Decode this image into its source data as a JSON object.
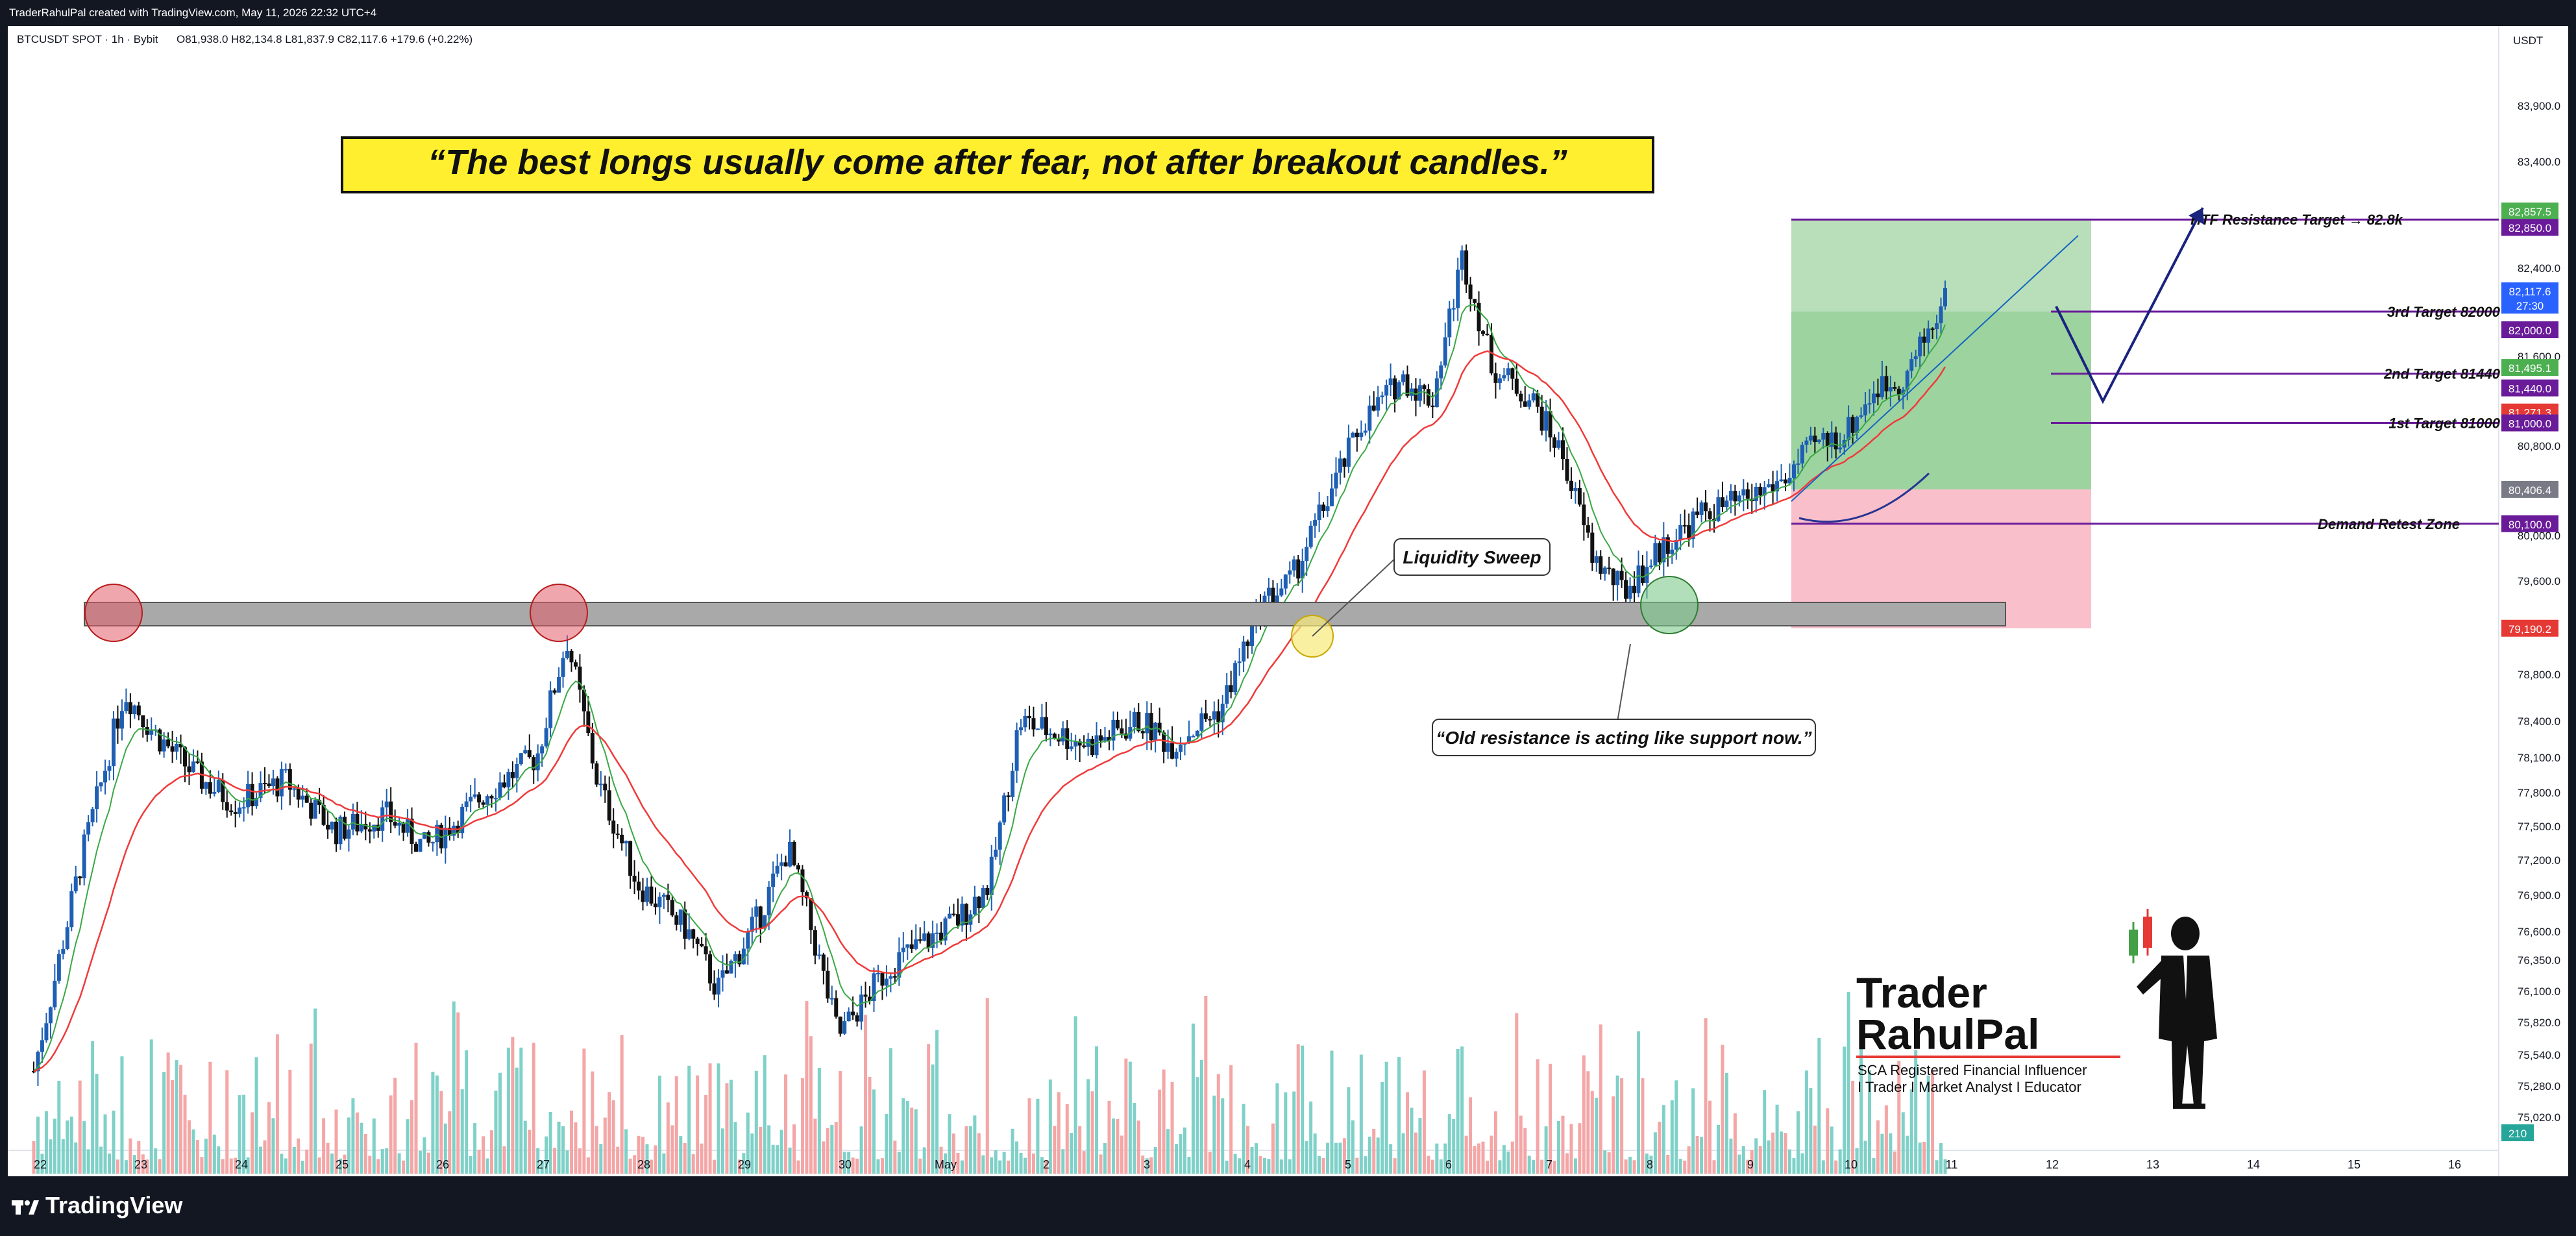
{
  "header": {
    "credit": "TraderRahulPal created with TradingView.com, May 11, 2026 22:32 UTC+4"
  },
  "symbol_line": {
    "symbol": "BTCUSDT SPOT · 1h · Bybit",
    "ohlc": "O81,938.0  H82,134.8  L81,837.9  C82,117.6  +179.6 (+0.22%)"
  },
  "quote": "“The best longs usually come after fear, not after breakout candles.”",
  "annotations": {
    "liquidity_sweep": "Liquidity Sweep",
    "old_resistance": "“Old resistance is acting like support now.”",
    "htf_target": "HTF Resistance Target → 82.8k",
    "target3": "3rd Target 82000",
    "target2": "2nd Target 81440",
    "target1": "1st Target 81000",
    "demand_zone": "Demand Retest Zone"
  },
  "price_badges": {
    "p82857": "82,857.5",
    "p82850": "82,850.0",
    "p82117": "82,117.6",
    "countdown": "27:30",
    "p82000": "82,000.0",
    "p81495": "81,495.1",
    "p81440": "81,440.0",
    "p81271": "81,271.3",
    "p81000": "81,000.0",
    "p80406": "80,406.4",
    "p80100": "80,100.0",
    "p79190": "79,190.2",
    "vol": "210"
  },
  "currency": "USDT",
  "branding": {
    "line1": "Trader",
    "line2": "RahulPal",
    "sub1": "SCA Registered Financial Influencer",
    "sub2": "I Trader I Market Analyst I Educator"
  },
  "footer": {
    "brand": "TradingView"
  },
  "colors": {
    "up": "#1e5fb4",
    "down": "#111111",
    "vol_up": "#7fd1c8",
    "vol_down": "#f4a6a6",
    "ema_fast": "#3aa845",
    "ema_slow": "#ef3b3b",
    "zone_profit": "#4caf50",
    "zone_loss": "#f7a9b8",
    "target_line": "#6a1b9a"
  },
  "chart_data": {
    "type": "candlestick",
    "symbol": "BTCUSDT SPOT · 1h · Bybit",
    "y_axis_ticks": [
      "83,900.0",
      "83,400.0",
      "82,400.0",
      "81,600.0",
      "80,800.0",
      "80,000.0",
      "79,600.0",
      "78,800.0",
      "78,400.0",
      "78,100.0",
      "77,800.0",
      "77,500.0",
      "77,200.0",
      "76,900.0",
      "76,600.0",
      "76,350.0",
      "76,100.0",
      "75,820.0",
      "75,540.0",
      "75,280.0",
      "75,020.0"
    ],
    "x_axis_ticks": [
      "22",
      "23",
      "24",
      "25",
      "26",
      "27",
      "28",
      "29",
      "30",
      "May",
      "2",
      "3",
      "4",
      "5",
      "6",
      "7",
      "8",
      "9",
      "10",
      "11",
      "12",
      "13",
      "14",
      "15",
      "16"
    ],
    "ylim": [
      74950,
      84200
    ],
    "close_path": [
      {
        "x": 0.0,
        "y": 75400
      },
      {
        "x": 0.5,
        "y": 77300
      },
      {
        "x": 0.9,
        "y": 78650
      },
      {
        "x": 1.2,
        "y": 78300
      },
      {
        "x": 1.6,
        "y": 77950
      },
      {
        "x": 2.0,
        "y": 77700
      },
      {
        "x": 2.5,
        "y": 77900
      },
      {
        "x": 3.0,
        "y": 77450
      },
      {
        "x": 3.5,
        "y": 77600
      },
      {
        "x": 3.9,
        "y": 77300
      },
      {
        "x": 4.5,
        "y": 77800
      },
      {
        "x": 5.0,
        "y": 78100
      },
      {
        "x": 5.3,
        "y": 79100
      },
      {
        "x": 5.6,
        "y": 77900
      },
      {
        "x": 6.0,
        "y": 77000
      },
      {
        "x": 6.5,
        "y": 76600
      },
      {
        "x": 6.8,
        "y": 76100
      },
      {
        "x": 7.2,
        "y": 76700
      },
      {
        "x": 7.5,
        "y": 77300
      },
      {
        "x": 7.7,
        "y": 76700
      },
      {
        "x": 8.0,
        "y": 75700
      },
      {
        "x": 8.5,
        "y": 76300
      },
      {
        "x": 9.2,
        "y": 76700
      },
      {
        "x": 9.5,
        "y": 77000
      },
      {
        "x": 9.8,
        "y": 78400
      },
      {
        "x": 10.5,
        "y": 78200
      },
      {
        "x": 11.0,
        "y": 78400
      },
      {
        "x": 11.3,
        "y": 78200
      },
      {
        "x": 11.8,
        "y": 78500
      },
      {
        "x": 12.2,
        "y": 79400
      },
      {
        "x": 12.5,
        "y": 79600
      },
      {
        "x": 12.8,
        "y": 80200
      },
      {
        "x": 13.2,
        "y": 81000
      },
      {
        "x": 13.6,
        "y": 81400
      },
      {
        "x": 13.9,
        "y": 81200
      },
      {
        "x": 14.2,
        "y": 82500
      },
      {
        "x": 14.5,
        "y": 81500
      },
      {
        "x": 14.9,
        "y": 81200
      },
      {
        "x": 15.2,
        "y": 80700
      },
      {
        "x": 15.5,
        "y": 79800
      },
      {
        "x": 15.8,
        "y": 79500
      },
      {
        "x": 16.2,
        "y": 79900
      },
      {
        "x": 16.6,
        "y": 80200
      },
      {
        "x": 17.0,
        "y": 80300
      },
      {
        "x": 17.4,
        "y": 80500
      },
      {
        "x": 17.7,
        "y": 80800
      },
      {
        "x": 18.0,
        "y": 80900
      },
      {
        "x": 18.3,
        "y": 81300
      },
      {
        "x": 18.6,
        "y": 81400
      },
      {
        "x": 19.0,
        "y": 82117.6
      }
    ],
    "zones": {
      "resistance_band": [
        79250,
        79400
      ],
      "entry": 80406.4,
      "target": 82857.5,
      "stop": 79190.2
    },
    "levels": {
      "htf_target": 82850,
      "target3": 82000,
      "target2": 81440,
      "target1": 81000,
      "demand": 80100
    },
    "grid": false,
    "legend": "none"
  }
}
